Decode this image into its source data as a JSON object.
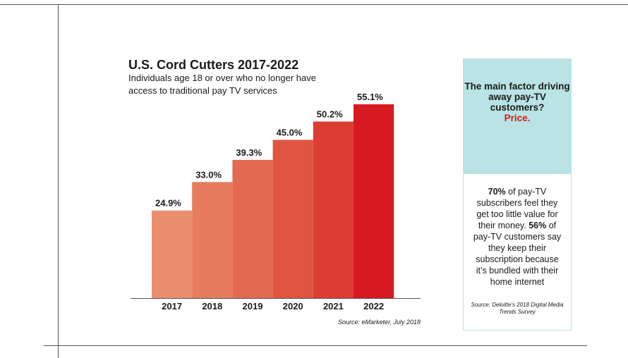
{
  "chart_data": {
    "type": "bar",
    "title": "U.S. Cord Cutters 2017-2022",
    "subtitle": "Individuals age 18 or over who no longer have access to traditional pay TV services",
    "categories": [
      "2017",
      "2018",
      "2019",
      "2020",
      "2021",
      "2022"
    ],
    "values": [
      24.9,
      33.0,
      39.3,
      45.0,
      50.2,
      55.1
    ],
    "value_labels": [
      "24.9%",
      "33.0%",
      "39.3%",
      "45.0%",
      "50.2%",
      "55.1%"
    ],
    "bar_colors": [
      "#eb8e70",
      "#e77c5f",
      "#e36a50",
      "#e05540",
      "#dc3d32",
      "#d71921"
    ],
    "xlabel": "",
    "ylabel": "",
    "ylim": [
      0,
      55.1
    ],
    "grid": false,
    "source": "Source: eMarketer, July 2018"
  },
  "sidebar": {
    "headline": "The main factor driving away pay-TV customers?",
    "headline_accent": "Price.",
    "stat1_value": "70%",
    "stat1_text": " of pay-TV subscribers feel they get too little value for their money. ",
    "stat2_value": "56%",
    "stat2_text": " of pay-TV customers say they keep their subscription because it’s bundled with their home internet",
    "source": "Source: Deloitte’s 2018 Digital Media Trends Survey",
    "accent_color": "#d71921",
    "panel_color": "#b9e3e4"
  }
}
